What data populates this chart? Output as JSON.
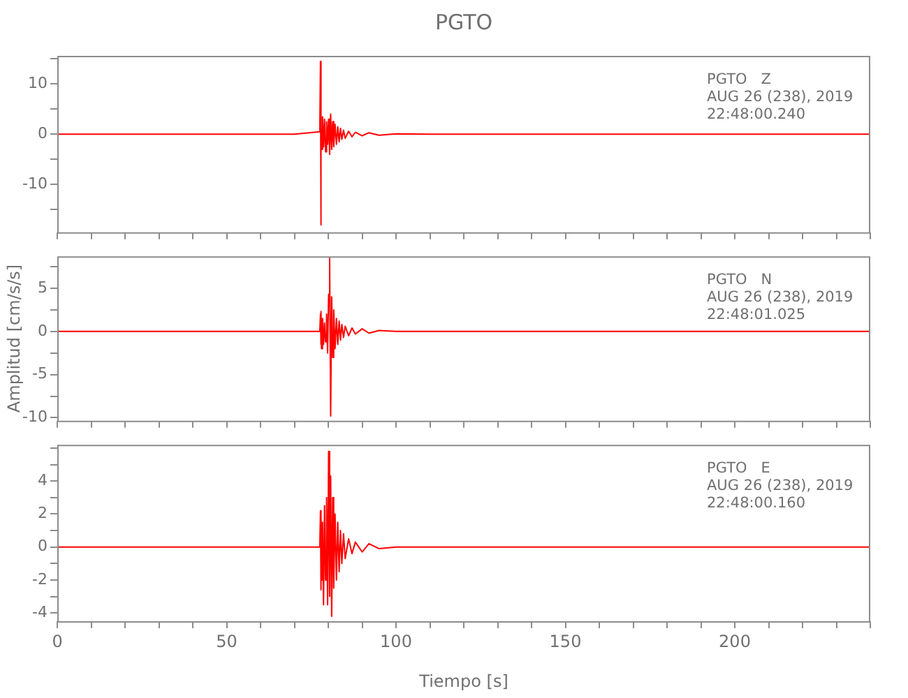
{
  "chart_data": [
    {
      "type": "line",
      "title": "PGTO",
      "marker": "none",
      "x": [
        0,
        10,
        20,
        30,
        40,
        50,
        60,
        70,
        77.5,
        77.7,
        77.8,
        77.9,
        78.0,
        78.3,
        78.6,
        78.9,
        79.2,
        79.5,
        79.8,
        80.1,
        80.4,
        80.7,
        81.0,
        81.3,
        81.6,
        82.0,
        82.4,
        82.8,
        83.2,
        83.6,
        84,
        84.5,
        85,
        86,
        87,
        88,
        90,
        92,
        95,
        100,
        110,
        120,
        140,
        160,
        180,
        200,
        220,
        240
      ],
      "series": [
        {
          "color": "#ff0000",
          "values": [
            0,
            0,
            0,
            0,
            0,
            0,
            0,
            0,
            0.5,
            14.5,
            -18,
            2,
            -3,
            3.5,
            -2.5,
            3,
            -3.5,
            2.5,
            -2,
            3,
            -4,
            4,
            -3,
            2.5,
            -2.5,
            2,
            -2,
            1.5,
            -1.5,
            1.2,
            -1,
            0.8,
            -0.8,
            0.6,
            -0.5,
            0.4,
            -0.3,
            0.3,
            -0.2,
            0.1,
            0,
            0,
            0,
            0,
            0,
            0,
            0,
            0
          ]
        }
      ],
      "xlim": [
        0,
        240
      ],
      "xticks": [
        0,
        {
          "value": 10,
          "label": null
        },
        {
          "value": 20,
          "label": null
        },
        {
          "value": 30,
          "label": null
        },
        {
          "value": 40,
          "label": null
        },
        50,
        {
          "value": 60,
          "label": null
        },
        {
          "value": 70,
          "label": null
        },
        {
          "value": 80,
          "label": null
        },
        {
          "value": 90,
          "label": null
        },
        100,
        {
          "value": 110,
          "label": null
        },
        {
          "value": 120,
          "label": null
        },
        {
          "value": 130,
          "label": null
        },
        {
          "value": 140,
          "label": null
        },
        150,
        {
          "value": 160,
          "label": null
        },
        {
          "value": 170,
          "label": null
        },
        {
          "value": 180,
          "label": null
        },
        {
          "value": 190,
          "label": null
        },
        200,
        {
          "value": 210,
          "label": null
        },
        {
          "value": 220,
          "label": null
        },
        {
          "value": 230,
          "label": null
        },
        {
          "value": 240,
          "label": null
        }
      ],
      "ylim": [
        -19.5,
        15.6
      ],
      "yticks": [
        {
          "value": -15,
          "label": null
        },
        -10,
        {
          "value": -5,
          "label": null
        },
        0,
        {
          "value": 5,
          "label": null
        },
        10,
        {
          "value": 15,
          "label": null
        }
      ],
      "tick_labels": "y",
      "annotations": [
        "PGTO   Z",
        "AUG 26 (238), 2019",
        "22:48:00.240"
      ]
    },
    {
      "type": "line",
      "marker": "none",
      "ylabel": "Amplitud [cm/s/s]",
      "x": [
        0,
        10,
        20,
        30,
        40,
        50,
        60,
        70,
        77.5,
        77.7,
        77.8,
        77.9,
        78.0,
        78.3,
        78.6,
        78.9,
        79.2,
        79.5,
        79.8,
        80.1,
        80.4,
        80.7,
        81.0,
        81.3,
        81.6,
        82.0,
        82.4,
        82.8,
        83.2,
        83.6,
        84,
        84.5,
        85,
        86,
        87,
        88,
        90,
        92,
        95,
        100,
        110,
        120,
        140,
        160,
        180,
        200,
        220,
        240
      ],
      "series": [
        {
          "color": "#ff0000",
          "values": [
            0,
            0,
            0,
            0,
            0,
            0,
            0,
            0,
            0,
            2,
            -1.5,
            2.3,
            -2,
            1.5,
            -1.5,
            1,
            -1.2,
            2,
            -2.5,
            4.3,
            8.5,
            -9.8,
            4,
            -3,
            2.5,
            -2,
            1.5,
            -1.5,
            1.2,
            -1,
            0.8,
            -0.7,
            0.6,
            -0.5,
            0.4,
            -0.3,
            0.3,
            -0.2,
            0.1,
            0,
            0,
            0,
            0,
            0,
            0,
            0,
            0,
            0
          ]
        }
      ],
      "xlim": [
        0,
        240
      ],
      "xticks": [
        0,
        {
          "value": 10,
          "label": null
        },
        {
          "value": 20,
          "label": null
        },
        {
          "value": 30,
          "label": null
        },
        {
          "value": 40,
          "label": null
        },
        50,
        {
          "value": 60,
          "label": null
        },
        {
          "value": 70,
          "label": null
        },
        {
          "value": 80,
          "label": null
        },
        {
          "value": 90,
          "label": null
        },
        100,
        {
          "value": 110,
          "label": null
        },
        {
          "value": 120,
          "label": null
        },
        {
          "value": 130,
          "label": null
        },
        {
          "value": 140,
          "label": null
        },
        150,
        {
          "value": 160,
          "label": null
        },
        {
          "value": 170,
          "label": null
        },
        {
          "value": 180,
          "label": null
        },
        {
          "value": 190,
          "label": null
        },
        200,
        {
          "value": 210,
          "label": null
        },
        {
          "value": 220,
          "label": null
        },
        {
          "value": 230,
          "label": null
        },
        {
          "value": 240,
          "label": null
        }
      ],
      "ylim": [
        -10.35,
        8.7
      ],
      "yticks": [
        -10,
        {
          "value": -7.5,
          "label": null
        },
        -5,
        {
          "value": -2.5,
          "label": null
        },
        0,
        {
          "value": 2.5,
          "label": null
        },
        5,
        {
          "value": 7.5,
          "label": null
        }
      ],
      "tick_labels": "y",
      "annotations": [
        "PGTO   N",
        "AUG 26 (238), 2019",
        "22:48:01.025"
      ]
    },
    {
      "type": "line",
      "marker": "none",
      "xlabel": "Tiempo [s]",
      "x": [
        0,
        10,
        20,
        30,
        40,
        50,
        60,
        70,
        77.5,
        77.7,
        77.8,
        77.9,
        78.0,
        78.3,
        78.6,
        78.9,
        79.2,
        79.5,
        79.8,
        80.1,
        80.4,
        80.7,
        81.0,
        81.3,
        81.6,
        82.0,
        82.4,
        82.8,
        83.2,
        83.6,
        84,
        84.5,
        85,
        86,
        87,
        88,
        90,
        92,
        95,
        100,
        110,
        120,
        140,
        160,
        180,
        200,
        220,
        240
      ],
      "series": [
        {
          "color": "#ff0000",
          "values": [
            0,
            0,
            0,
            0,
            0,
            0,
            0,
            0,
            0,
            2.2,
            -2.6,
            2,
            -2,
            1.5,
            -3.5,
            2.5,
            -2,
            3,
            -3.5,
            5.8,
            -3,
            4.3,
            -4.2,
            3,
            -2.5,
            2,
            -2,
            1.5,
            -1.5,
            1,
            -1,
            0.8,
            -0.7,
            0.5,
            -0.4,
            0.3,
            -0.3,
            0.2,
            -0.1,
            0,
            0,
            0,
            0,
            0,
            0,
            0,
            0,
            0
          ]
        }
      ],
      "xlim": [
        0,
        240
      ],
      "xticks": [
        0,
        {
          "value": 10,
          "label": null
        },
        {
          "value": 20,
          "label": null
        },
        {
          "value": 30,
          "label": null
        },
        {
          "value": 40,
          "label": null
        },
        50,
        {
          "value": 60,
          "label": null
        },
        {
          "value": 70,
          "label": null
        },
        {
          "value": 80,
          "label": null
        },
        {
          "value": 90,
          "label": null
        },
        100,
        {
          "value": 110,
          "label": null
        },
        {
          "value": 120,
          "label": null
        },
        {
          "value": 130,
          "label": null
        },
        {
          "value": 140,
          "label": null
        },
        150,
        {
          "value": 160,
          "label": null
        },
        {
          "value": 170,
          "label": null
        },
        {
          "value": 180,
          "label": null
        },
        {
          "value": 190,
          "label": null
        },
        200,
        {
          "value": 210,
          "label": null
        },
        {
          "value": 220,
          "label": null
        },
        {
          "value": 230,
          "label": null
        },
        {
          "value": 240,
          "label": null
        }
      ],
      "ylim": [
        -4.5,
        6.2
      ],
      "yticks": [
        -4,
        {
          "value": -3,
          "label": null
        },
        -2,
        {
          "value": -1,
          "label": null
        },
        0,
        {
          "value": 1,
          "label": null
        },
        2,
        {
          "value": 3,
          "label": null
        },
        4,
        {
          "value": 5,
          "label": null
        },
        {
          "value": 6,
          "label": null
        }
      ],
      "annotations": [
        "PGTO   E",
        "AUG 26 (238), 2019",
        "22:48:00.160"
      ]
    }
  ]
}
